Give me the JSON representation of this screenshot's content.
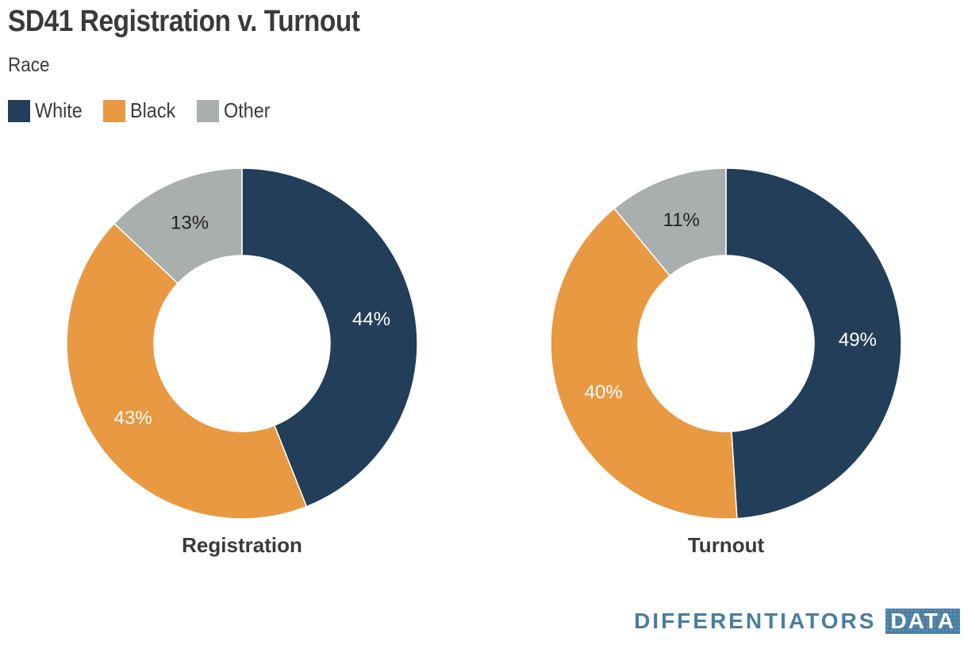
{
  "title": "SD41 Registration v. Turnout",
  "subtitle": "Race",
  "legend": [
    {
      "label": "White",
      "color": "#223e58"
    },
    {
      "label": "Black",
      "color": "#e89941"
    },
    {
      "label": "Other",
      "color": "#a9aeae"
    }
  ],
  "chart_data": [
    {
      "type": "pie",
      "title": "Registration",
      "categories": [
        "White",
        "Black",
        "Other"
      ],
      "values": [
        44,
        43,
        13
      ],
      "labels": [
        "44%",
        "43%",
        "13%"
      ]
    },
    {
      "type": "pie",
      "title": "Turnout",
      "categories": [
        "White",
        "Black",
        "Other"
      ],
      "values": [
        49,
        40,
        11
      ],
      "labels": [
        "49%",
        "40%",
        "11%"
      ]
    }
  ],
  "brand": {
    "word": "DIFFERENTIATORS",
    "box": "DATA"
  }
}
